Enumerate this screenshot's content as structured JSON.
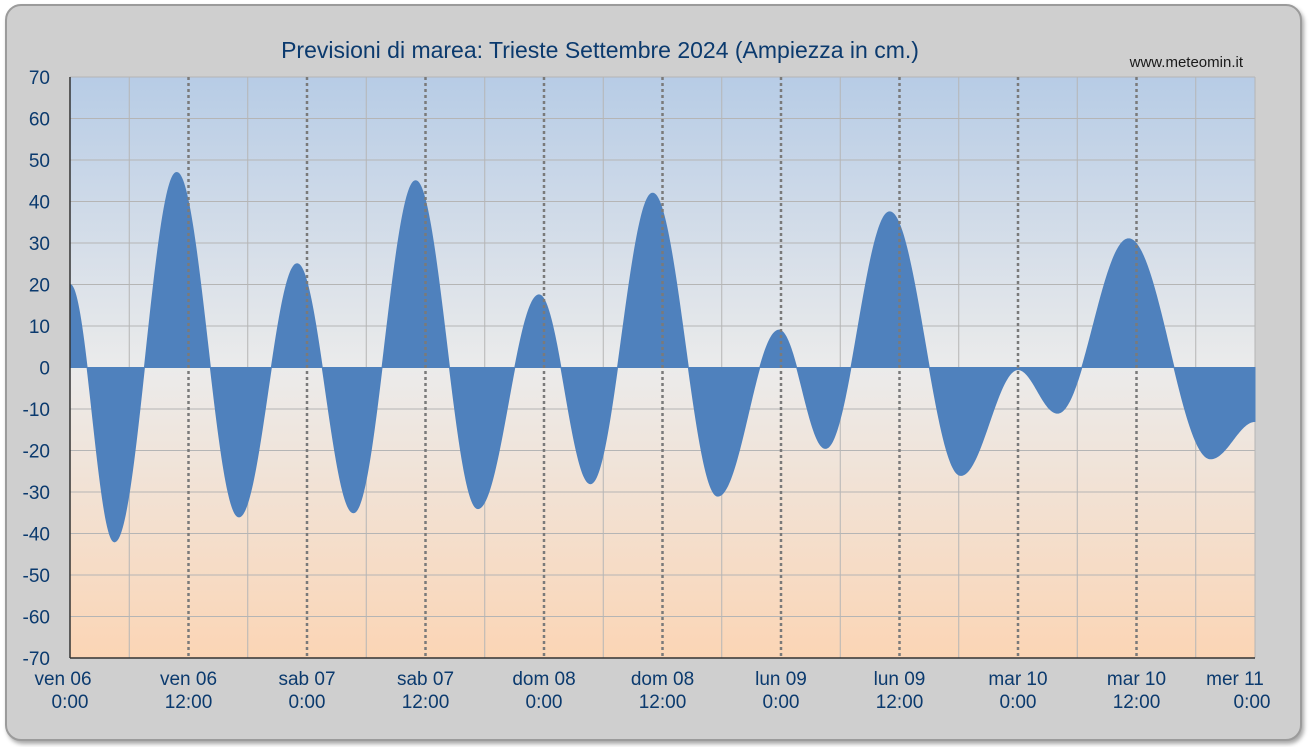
{
  "chart_data": {
    "type": "area",
    "title": "Previsioni di marea: Trieste Settembre 2024 (Ampiezza in cm.)",
    "source_label": "www.meteomin.it",
    "ylim": [
      -70,
      70
    ],
    "yticks": [
      70,
      60,
      50,
      40,
      30,
      20,
      10,
      0,
      -10,
      -20,
      -30,
      -40,
      -50,
      -60,
      -70
    ],
    "xlim_hours": [
      0,
      120
    ],
    "x_tick_labels": [
      {
        "day": "ven",
        "date": "06",
        "time": "0:00"
      },
      {
        "day": "ven",
        "date": "06",
        "time": "12:00"
      },
      {
        "day": "sab",
        "date": "07",
        "time": "0:00"
      },
      {
        "day": "sab",
        "date": "07",
        "time": "12:00"
      },
      {
        "day": "dom",
        "date": "08",
        "time": "0:00"
      },
      {
        "day": "dom",
        "date": "08",
        "time": "12:00"
      },
      {
        "day": "lun",
        "date": "09",
        "time": "0:00"
      },
      {
        "day": "lun",
        "date": "09",
        "time": "12:00"
      },
      {
        "day": "mar",
        "date": "10",
        "time": "0:00"
      },
      {
        "day": "mar",
        "date": "10",
        "time": "12:00"
      },
      {
        "day": "mer",
        "date": "11",
        "time": "0:00"
      }
    ],
    "fill_color": "#4f81bd",
    "background_top": "#b7cce6",
    "background_bottom": "#fbd5b5",
    "grid": true,
    "extrema": [
      {
        "t": 0,
        "v": 20
      },
      {
        "t": 4.5,
        "v": -42
      },
      {
        "t": 10.8,
        "v": 47
      },
      {
        "t": 17.1,
        "v": -36
      },
      {
        "t": 23.0,
        "v": 25
      },
      {
        "t": 28.7,
        "v": -35
      },
      {
        "t": 35.0,
        "v": 45
      },
      {
        "t": 41.3,
        "v": -34
      },
      {
        "t": 47.5,
        "v": 17.5
      },
      {
        "t": 52.7,
        "v": -28
      },
      {
        "t": 59.0,
        "v": 42
      },
      {
        "t": 65.6,
        "v": -31
      },
      {
        "t": 71.8,
        "v": 9
      },
      {
        "t": 76.5,
        "v": -19.5
      },
      {
        "t": 83.0,
        "v": 37.5
      },
      {
        "t": 90.2,
        "v": -26
      },
      {
        "t": 96.0,
        "v": -0.5
      },
      {
        "t": 100.0,
        "v": -11
      },
      {
        "t": 107.2,
        "v": 31
      },
      {
        "t": 115.5,
        "v": -22
      },
      {
        "t": 120.0,
        "v": -13
      }
    ]
  }
}
